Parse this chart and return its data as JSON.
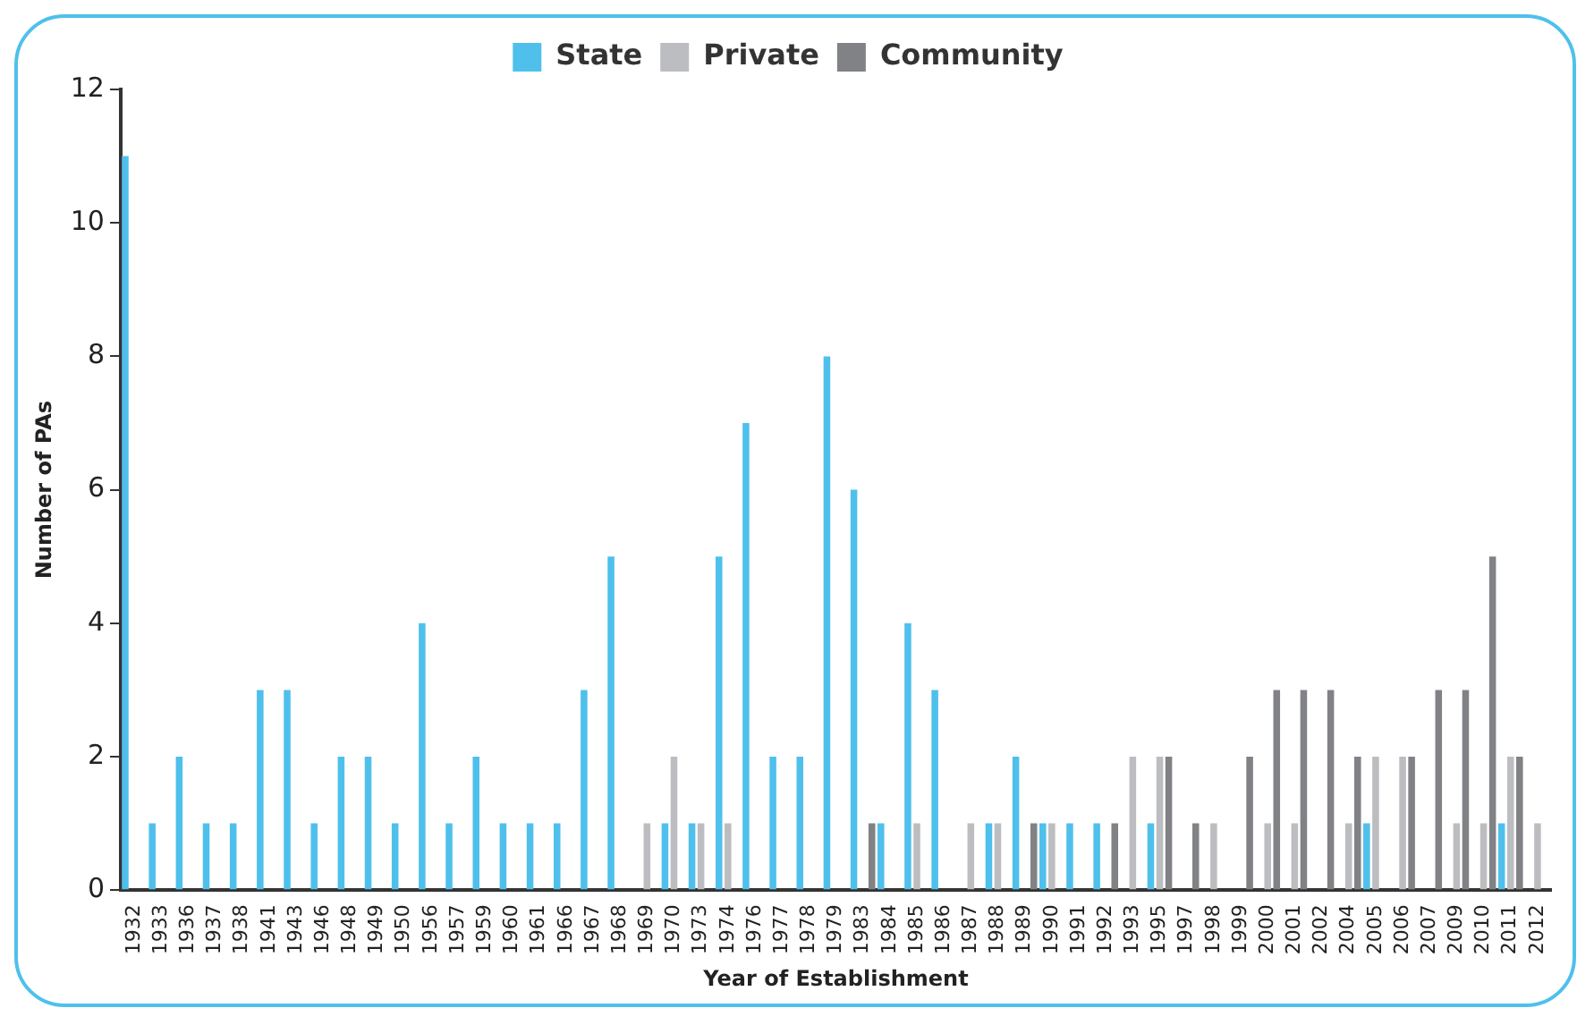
{
  "chart_data": {
    "type": "bar",
    "xlabel": "Year of Establishment",
    "ylabel": "Number of PAs",
    "categories": [
      "1932",
      "1933",
      "1936",
      "1937",
      "1938",
      "1941",
      "1943",
      "1946",
      "1948",
      "1949",
      "1950",
      "1956",
      "1957",
      "1959",
      "1960",
      "1961",
      "1966",
      "1967",
      "1968",
      "1969",
      "1970",
      "1973",
      "1974",
      "1976",
      "1977",
      "1978",
      "1979",
      "1983",
      "1984",
      "1985",
      "1986",
      "1987",
      "1988",
      "1989",
      "1990",
      "1991",
      "1992",
      "1993",
      "1995",
      "1997",
      "1998",
      "1999",
      "2000",
      "2001",
      "2002",
      "2004",
      "2005",
      "2006",
      "2007",
      "2009",
      "2010",
      "2011",
      "2012"
    ],
    "series": [
      {
        "name": "State",
        "color": "#4fc0ec",
        "values": [
          11,
          1,
          2,
          1,
          1,
          3,
          3,
          1,
          2,
          2,
          1,
          4,
          1,
          2,
          1,
          1,
          1,
          3,
          5,
          null,
          1,
          1,
          5,
          7,
          2,
          2,
          8,
          6,
          1,
          4,
          3,
          null,
          1,
          2,
          1,
          1,
          1,
          null,
          1,
          null,
          null,
          null,
          null,
          null,
          null,
          null,
          1,
          null,
          null,
          null,
          null,
          1,
          null
        ]
      },
      {
        "name": "Private",
        "color": "#bcbdc0",
        "values": [
          null,
          null,
          null,
          null,
          null,
          null,
          null,
          null,
          null,
          null,
          null,
          null,
          null,
          null,
          null,
          null,
          null,
          null,
          null,
          1,
          2,
          1,
          1,
          null,
          null,
          null,
          null,
          null,
          null,
          1,
          null,
          1,
          1,
          null,
          1,
          null,
          null,
          2,
          2,
          null,
          1,
          null,
          1,
          1,
          null,
          1,
          2,
          2,
          null,
          1,
          1,
          2,
          1
        ]
      },
      {
        "name": "Community",
        "color": "#808285",
        "values": [
          null,
          null,
          null,
          null,
          null,
          null,
          null,
          null,
          null,
          null,
          null,
          null,
          null,
          null,
          null,
          null,
          null,
          null,
          null,
          null,
          null,
          null,
          null,
          null,
          null,
          null,
          null,
          1,
          null,
          null,
          null,
          null,
          null,
          1,
          null,
          null,
          1,
          null,
          2,
          1,
          null,
          2,
          3,
          3,
          3,
          2,
          null,
          2,
          3,
          3,
          5,
          2,
          null
        ]
      }
    ],
    "ylim": [
      0,
      12
    ],
    "yticks": [
      0,
      2,
      4,
      6,
      8,
      10,
      12
    ],
    "grid": false,
    "legend": "top"
  }
}
